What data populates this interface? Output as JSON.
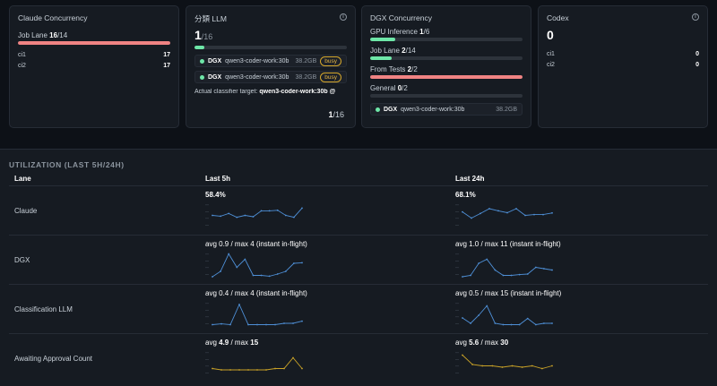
{
  "cards": {
    "claude": {
      "title": "Claude Concurrency",
      "job_lane_label": "Job Lane",
      "job_lane_used": "16",
      "job_lane_total": "/14",
      "job_lane_fraction": 1.0,
      "rows": [
        {
          "name": "ci1",
          "value": "17"
        },
        {
          "name": "ci2",
          "value": "17"
        }
      ]
    },
    "llm": {
      "title": "分類 LLM",
      "big_value": "1",
      "big_total": "/16",
      "fraction": 0.0625,
      "models": [
        {
          "host": "DGX",
          "model": "qwen3-coder-work:30b",
          "size": "38.2GB",
          "badge": "busy"
        },
        {
          "host": "DGX",
          "model": "qwen3-coder-work:30b",
          "size": "38.2GB",
          "badge": "busy"
        }
      ],
      "target_label": "Actual classifier target:",
      "target_value": "qwen3-coder-work:30b @",
      "footer_used": "1",
      "footer_total": "/16"
    },
    "dgx": {
      "title": "DGX Concurrency",
      "lanes": [
        {
          "label": "GPU Inference",
          "used": "1",
          "total": "/6",
          "fraction": 0.167,
          "color": "#6ee7a8"
        },
        {
          "label": "Job Lane",
          "used": "2",
          "total": "/14",
          "fraction": 0.143,
          "color": "#6ee7a8"
        },
        {
          "label": "From Tests",
          "used": "2",
          "total": "/2",
          "fraction": 1.0,
          "color": "#f08383"
        },
        {
          "label": "General",
          "used": "0",
          "total": "/2",
          "fraction": 0.0,
          "color": "#6ee7a8"
        }
      ],
      "model": {
        "host": "DGX",
        "model": "qwen3-coder-work:30b",
        "size": "38.2GB"
      }
    },
    "codex": {
      "title": "Codex",
      "big_value": "0",
      "rows": [
        {
          "name": "ci1",
          "value": "0"
        },
        {
          "name": "ci2",
          "value": "0"
        }
      ]
    }
  },
  "utilization": {
    "title": "UTILIZATION (LAST 5H/24H)",
    "col_lane": "Lane",
    "col_5h": "Last 5h",
    "col_24h": "Last 24h",
    "rows": [
      {
        "lane": "Claude",
        "stat_5h": "58.4%",
        "stat_24h": "68.1%",
        "color": "#4e8fd6",
        "spark_5h": [
          0.55,
          0.52,
          0.62,
          0.48,
          0.55,
          0.5,
          0.72,
          0.72,
          0.74,
          0.55,
          0.48,
          0.82
        ],
        "spark_24h": [
          0.68,
          0.45,
          0.62,
          0.8,
          0.72,
          0.65,
          0.8,
          0.55,
          0.58,
          0.58,
          0.64
        ]
      },
      {
        "lane": "DGX",
        "stat_5h": "avg 0.9 / max 4 (instant in-flight)",
        "stat_24h": "avg 1.0 / max 11 (instant in-flight)",
        "color": "#4e8fd6",
        "spark_5h": [
          0.1,
          0.3,
          0.95,
          0.45,
          0.75,
          0.15,
          0.15,
          0.12,
          0.2,
          0.3,
          0.6,
          0.62
        ],
        "spark_24h": [
          0.1,
          0.15,
          0.6,
          0.75,
          0.35,
          0.15,
          0.15,
          0.18,
          0.2,
          0.45,
          0.4,
          0.35
        ]
      },
      {
        "lane": "Classification LLM",
        "stat_5h": "avg 0.4 / max 4 (instant in-flight)",
        "stat_24h": "avg 0.5 / max 15 (instant in-flight)",
        "color": "#4e8fd6",
        "spark_5h": [
          0.15,
          0.18,
          0.15,
          0.9,
          0.15,
          0.15,
          0.15,
          0.15,
          0.2,
          0.2,
          0.28
        ],
        "spark_24h": [
          0.4,
          0.2,
          0.5,
          0.85,
          0.2,
          0.15,
          0.15,
          0.15,
          0.38,
          0.15,
          0.2,
          0.2
        ]
      },
      {
        "lane": "Awaiting Approval Count",
        "stat_5h_pre": "avg ",
        "stat_5h_avg": "4.9",
        "stat_5h_mid": " / max ",
        "stat_5h_max": "15",
        "stat_24h_pre": "avg ",
        "stat_24h_avg": "5.6",
        "stat_24h_mid": " / max ",
        "stat_24h_max": "30",
        "color": "#c9a227",
        "spark_5h": [
          0.35,
          0.3,
          0.3,
          0.3,
          0.3,
          0.3,
          0.3,
          0.35,
          0.35,
          0.75,
          0.35
        ],
        "spark_24h": [
          0.85,
          0.5,
          0.45,
          0.45,
          0.4,
          0.45,
          0.4,
          0.45,
          0.35,
          0.45
        ]
      }
    ]
  }
}
